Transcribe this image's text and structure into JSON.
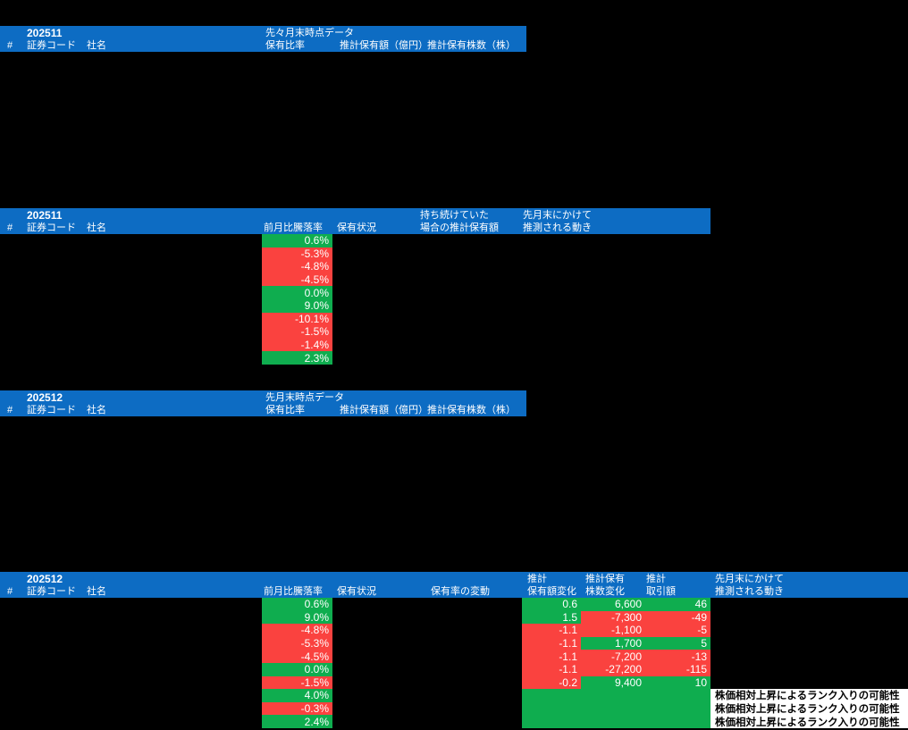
{
  "colors": {
    "blue": "#0d6cc3",
    "green": "#0fad4f",
    "red": "#fa423f",
    "note_bg": "#ffffff"
  },
  "table1": {
    "period": "202511",
    "title": "先々月末時点データ",
    "hash": "#",
    "code": "証券コード",
    "name": "社名",
    "ratio": "保有比率",
    "amount": "推計保有額（億円）",
    "shares": "推計保有株数（株）"
  },
  "table2": {
    "period": "202511",
    "hash": "#",
    "code": "証券コード",
    "name": "社名",
    "change": "前月比騰落率",
    "status": "保有状況",
    "hold_line1": "持ち続けていた",
    "hold_line2": "場合の推計保有額",
    "move_line1": "先月末にかけて",
    "move_line2": "推測される動き",
    "rows": [
      {
        "value": "0.6%",
        "color": "green"
      },
      {
        "value": "-5.3%",
        "color": "red"
      },
      {
        "value": "-4.8%",
        "color": "red"
      },
      {
        "value": "-4.5%",
        "color": "red"
      },
      {
        "value": "0.0%",
        "color": "green"
      },
      {
        "value": "9.0%",
        "color": "green"
      },
      {
        "value": "-10.1%",
        "color": "red"
      },
      {
        "value": "-1.5%",
        "color": "red"
      },
      {
        "value": "-1.4%",
        "color": "red"
      },
      {
        "value": "2.3%",
        "color": "green"
      }
    ]
  },
  "table3": {
    "period": "202512",
    "title": "先月末時点データ",
    "hash": "#",
    "code": "証券コード",
    "name": "社名",
    "ratio": "保有比率",
    "amount": "推計保有額（億円）",
    "shares": "推計保有株数（株）"
  },
  "table4": {
    "period": "202512",
    "hash": "#",
    "code": "証券コード",
    "name": "社名",
    "change": "前月比騰落率",
    "status": "保有状況",
    "ratio_change": "保有率の変動",
    "est_amount_line1": "推計",
    "est_amount_line2": "保有額変化",
    "est_shares_line1": "推計保有",
    "est_shares_line2": "株数変化",
    "est_trade_line1": "推計",
    "est_trade_line2": "取引額",
    "move_line1": "先月末にかけて",
    "move_line2": "推測される動き",
    "rows": [
      {
        "pct": "0.6%",
        "pct_color": "green",
        "amount": "0.6",
        "amount_color": "green",
        "shares": "6,600",
        "shares_color": "green",
        "trade": "46",
        "trade_color": "green"
      },
      {
        "pct": "9.0%",
        "pct_color": "green",
        "amount": "1.5",
        "amount_color": "green",
        "shares": "-7,300",
        "shares_color": "red",
        "trade": "-49",
        "trade_color": "red"
      },
      {
        "pct": "-4.8%",
        "pct_color": "red",
        "amount": "-1.1",
        "amount_color": "red",
        "shares": "-1,100",
        "shares_color": "red",
        "trade": "-5",
        "trade_color": "red"
      },
      {
        "pct": "-5.3%",
        "pct_color": "red",
        "amount": "-1.1",
        "amount_color": "red",
        "shares": "1,700",
        "shares_color": "green",
        "trade": "5",
        "trade_color": "green"
      },
      {
        "pct": "-4.5%",
        "pct_color": "red",
        "amount": "-1.1",
        "amount_color": "red",
        "shares": "-7,200",
        "shares_color": "red",
        "trade": "-13",
        "trade_color": "red"
      },
      {
        "pct": "0.0%",
        "pct_color": "green",
        "amount": "-1.1",
        "amount_color": "red",
        "shares": "-27,200",
        "shares_color": "red",
        "trade": "-115",
        "trade_color": "red"
      },
      {
        "pct": "-1.5%",
        "pct_color": "red",
        "amount": "-0.2",
        "amount_color": "red",
        "shares": "9,400",
        "shares_color": "green",
        "trade": "10",
        "trade_color": "green"
      },
      {
        "pct": "4.0%",
        "pct_color": "green",
        "amount": "",
        "amount_color": "green",
        "shares": "",
        "shares_color": "green",
        "trade": "",
        "trade_color": "green"
      },
      {
        "pct": "-0.3%",
        "pct_color": "red",
        "amount": "",
        "amount_color": "green",
        "shares": "",
        "shares_color": "green",
        "trade": "",
        "trade_color": "green"
      },
      {
        "pct": "2.4%",
        "pct_color": "green",
        "amount": "",
        "amount_color": "green",
        "shares": "",
        "shares_color": "green",
        "trade": "",
        "trade_color": "green"
      }
    ],
    "notes": [
      "株価相対上昇によるランク入りの可能性",
      "株価相対上昇によるランク入りの可能性",
      "株価相対上昇によるランク入りの可能性"
    ]
  }
}
